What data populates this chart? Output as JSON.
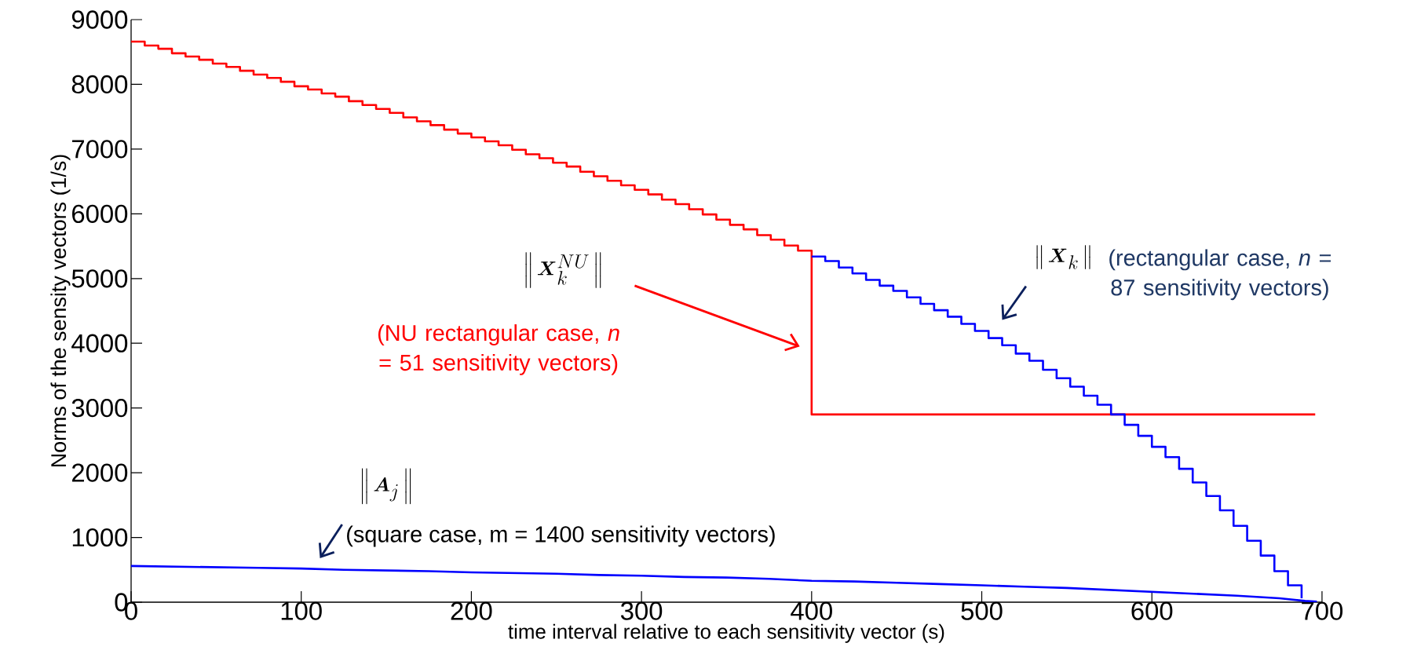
{
  "chart_data": {
    "type": "step",
    "xlabel": "time interval relative to each sensitivity vector (s)",
    "ylabel": "Norms of the sensity vectors (1/s)",
    "xlim": [
      0,
      700
    ],
    "ylim": [
      0,
      9000
    ],
    "xticks": [
      0,
      100,
      200,
      300,
      400,
      500,
      600,
      700
    ],
    "yticks": [
      0,
      1000,
      2000,
      3000,
      4000,
      5000,
      6000,
      7000,
      8000,
      9000
    ],
    "series": [
      {
        "color": "#ff0000",
        "x": [
          0,
          8,
          16,
          24,
          32,
          40,
          48,
          56,
          64,
          72,
          80,
          88,
          96,
          104,
          112,
          120,
          128,
          136,
          144,
          152,
          160,
          168,
          176,
          184,
          192,
          200,
          208,
          216,
          224,
          232,
          240,
          248,
          256,
          264,
          272,
          280,
          288,
          296,
          304,
          312,
          320,
          328,
          336,
          344,
          352,
          360,
          368,
          376,
          384,
          392,
          400,
          696
        ],
        "values": [
          8660,
          8600,
          8550,
          8480,
          8430,
          8380,
          8320,
          8270,
          8210,
          8150,
          8100,
          8040,
          7970,
          7920,
          7860,
          7810,
          7740,
          7680,
          7620,
          7560,
          7490,
          7430,
          7370,
          7300,
          7240,
          7180,
          7120,
          7060,
          6990,
          6920,
          6860,
          6790,
          6730,
          6650,
          6580,
          6510,
          6440,
          6370,
          6300,
          6220,
          6150,
          6070,
          5990,
          5910,
          5830,
          5760,
          5670,
          5600,
          5510,
          5430,
          2900,
          2900
        ]
      },
      {
        "color": "#0000ff",
        "x": [
          400,
          408,
          416,
          424,
          432,
          440,
          448,
          456,
          464,
          472,
          480,
          488,
          496,
          504,
          512,
          520,
          528,
          536,
          544,
          552,
          560,
          568,
          576,
          584,
          592,
          600,
          608,
          616,
          624,
          632,
          640,
          648,
          656,
          664,
          672,
          680,
          688
        ],
        "values": [
          5340,
          5270,
          5170,
          5080,
          4980,
          4890,
          4810,
          4710,
          4610,
          4510,
          4410,
          4300,
          4190,
          4080,
          3970,
          3840,
          3730,
          3590,
          3460,
          3330,
          3190,
          3050,
          2900,
          2740,
          2570,
          2400,
          2240,
          2060,
          1850,
          1640,
          1420,
          1180,
          950,
          720,
          480,
          260,
          60
        ]
      },
      {
        "color": "#0000ff",
        "type": "line",
        "x": [
          0,
          25,
          50,
          75,
          100,
          125,
          150,
          175,
          200,
          225,
          250,
          275,
          300,
          325,
          350,
          375,
          400,
          425,
          450,
          475,
          500,
          525,
          550,
          575,
          600,
          625,
          650,
          675,
          690,
          697
        ],
        "values": [
          560,
          550,
          540,
          530,
          520,
          500,
          490,
          480,
          460,
          450,
          440,
          420,
          410,
          390,
          380,
          360,
          330,
          320,
          300,
          280,
          260,
          240,
          220,
          190,
          160,
          130,
          100,
          60,
          20,
          10
        ]
      }
    ],
    "annotations": [
      "\\left\\| \\, \\boldsymbol{X}_k^{NU} \\, \\right\\|",
      "(NU rectangular case, *n* = 51 sensitivity vectors)",
      "\\left\\| \\, \\boldsymbol{X}_k \\, \\right\\|",
      "(rectangular case, *n* = 87 sensitivity vectors)",
      "\\left\\| \\, \\boldsymbol{A}_j \\, \\right\\|",
      "(square case, m = 1400 sensitivity vectors)"
    ]
  }
}
